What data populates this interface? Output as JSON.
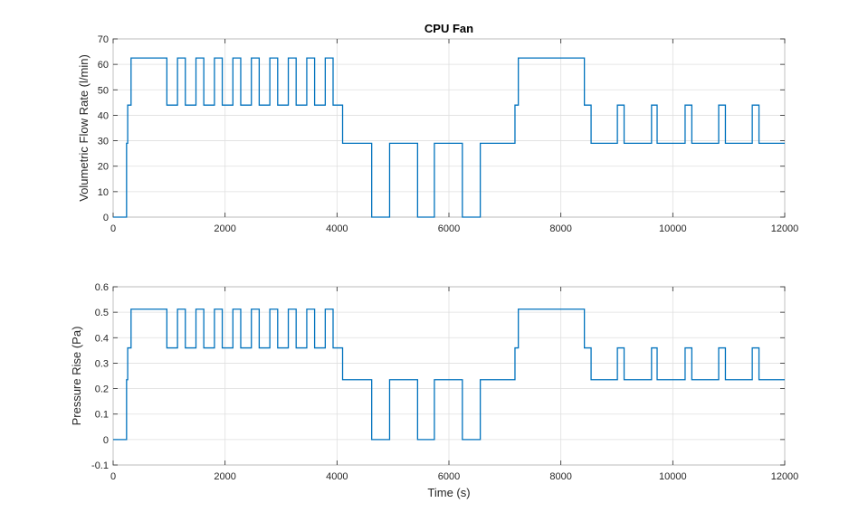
{
  "chart_data": [
    {
      "type": "line",
      "title": "CPU Fan",
      "xlabel": "",
      "ylabel": "Volumetric Flow Rate (l/min)",
      "xlim": [
        0,
        12000
      ],
      "ylim": [
        0,
        70
      ],
      "xticks": [
        0,
        2000,
        4000,
        6000,
        8000,
        10000,
        12000
      ],
      "yticks": [
        0,
        10,
        20,
        30,
        40,
        50,
        60,
        70
      ],
      "xtick_labels": [
        "0",
        "2000",
        "4000",
        "6000",
        "8000",
        "10000",
        "12000"
      ],
      "ytick_labels": [
        "0",
        "10",
        "20",
        "30",
        "40",
        "50",
        "60",
        "70"
      ],
      "grid": true,
      "series": [
        {
          "name": "Volumetric Flow Rate",
          "color": "#0072bd",
          "x": [
            0,
            240,
            240,
            260,
            260,
            320,
            320,
            960,
            960,
            1150,
            1150,
            1290,
            1290,
            1480,
            1480,
            1620,
            1620,
            1810,
            1810,
            1950,
            1950,
            2140,
            2140,
            2280,
            2280,
            2470,
            2470,
            2610,
            2610,
            2800,
            2800,
            2940,
            2940,
            3130,
            3130,
            3270,
            3270,
            3460,
            3460,
            3600,
            3600,
            3790,
            3790,
            3930,
            3930,
            4100,
            4100,
            4620,
            4620,
            4940,
            4940,
            5440,
            5440,
            5740,
            5740,
            6240,
            6240,
            6560,
            6560,
            7180,
            7180,
            7240,
            7240,
            8420,
            8420,
            8540,
            8540,
            9010,
            9010,
            9130,
            9130,
            9620,
            9620,
            9720,
            9720,
            10220,
            10220,
            10340,
            10340,
            10820,
            10820,
            10940,
            10940,
            11420,
            11420,
            11540,
            11540,
            12000
          ],
          "y": [
            0,
            0,
            29,
            29,
            44,
            44,
            62.5,
            62.5,
            44,
            44,
            62.5,
            62.5,
            44,
            44,
            62.5,
            62.5,
            44,
            44,
            62.5,
            62.5,
            44,
            44,
            62.5,
            62.5,
            44,
            44,
            62.5,
            62.5,
            44,
            44,
            62.5,
            62.5,
            44,
            44,
            62.5,
            62.5,
            44,
            44,
            62.5,
            62.5,
            44,
            44,
            62.5,
            62.5,
            44,
            44,
            29,
            29,
            0,
            0,
            29,
            29,
            0,
            0,
            29,
            29,
            0,
            0,
            29,
            29,
            44,
            44,
            62.5,
            62.5,
            44,
            44,
            29,
            29,
            44,
            44,
            29,
            29,
            44,
            44,
            29,
            29,
            44,
            44,
            29,
            29,
            44,
            44,
            29,
            29,
            44,
            44,
            29,
            29
          ]
        }
      ]
    },
    {
      "type": "line",
      "title": "",
      "xlabel": "Time (s)",
      "ylabel": "Pressure Rise (Pa)",
      "xlim": [
        0,
        12000
      ],
      "ylim": [
        -0.1,
        0.6
      ],
      "xticks": [
        0,
        2000,
        4000,
        6000,
        8000,
        10000,
        12000
      ],
      "yticks": [
        -0.1,
        0,
        0.1,
        0.2,
        0.3,
        0.4,
        0.5,
        0.6
      ],
      "xtick_labels": [
        "0",
        "2000",
        "4000",
        "6000",
        "8000",
        "10000",
        "12000"
      ],
      "ytick_labels": [
        "-0.1",
        "0",
        "0.1",
        "0.2",
        "0.3",
        "0.4",
        "0.5",
        "0.6"
      ],
      "grid": true,
      "series": [
        {
          "name": "Pressure Rise",
          "color": "#0072bd",
          "x": [
            0,
            240,
            240,
            260,
            260,
            320,
            320,
            960,
            960,
            1150,
            1150,
            1290,
            1290,
            1480,
            1480,
            1620,
            1620,
            1810,
            1810,
            1950,
            1950,
            2140,
            2140,
            2280,
            2280,
            2470,
            2470,
            2610,
            2610,
            2800,
            2800,
            2940,
            2940,
            3130,
            3130,
            3270,
            3270,
            3460,
            3460,
            3600,
            3600,
            3790,
            3790,
            3930,
            3930,
            4100,
            4100,
            4620,
            4620,
            4940,
            4940,
            5440,
            5440,
            5740,
            5740,
            6240,
            6240,
            6560,
            6560,
            7180,
            7180,
            7240,
            7240,
            8420,
            8420,
            8540,
            8540,
            9010,
            9010,
            9130,
            9130,
            9620,
            9620,
            9720,
            9720,
            10220,
            10220,
            10340,
            10340,
            10820,
            10820,
            10940,
            10940,
            11420,
            11420,
            11540,
            11540,
            12000
          ],
          "y": [
            0,
            0,
            0.235,
            0.235,
            0.36,
            0.36,
            0.512,
            0.512,
            0.36,
            0.36,
            0.512,
            0.512,
            0.36,
            0.36,
            0.512,
            0.512,
            0.36,
            0.36,
            0.512,
            0.512,
            0.36,
            0.36,
            0.512,
            0.512,
            0.36,
            0.36,
            0.512,
            0.512,
            0.36,
            0.36,
            0.512,
            0.512,
            0.36,
            0.36,
            0.512,
            0.512,
            0.36,
            0.36,
            0.512,
            0.512,
            0.36,
            0.36,
            0.512,
            0.512,
            0.36,
            0.36,
            0.235,
            0.235,
            0,
            0,
            0.235,
            0.235,
            0,
            0,
            0.235,
            0.235,
            0,
            0,
            0.235,
            0.235,
            0.36,
            0.36,
            0.512,
            0.512,
            0.36,
            0.36,
            0.235,
            0.235,
            0.36,
            0.36,
            0.235,
            0.235,
            0.36,
            0.36,
            0.235,
            0.235,
            0.36,
            0.36,
            0.235,
            0.235,
            0.36,
            0.36,
            0.235,
            0.235,
            0.36,
            0.36,
            0.235,
            0.235
          ]
        }
      ]
    }
  ]
}
